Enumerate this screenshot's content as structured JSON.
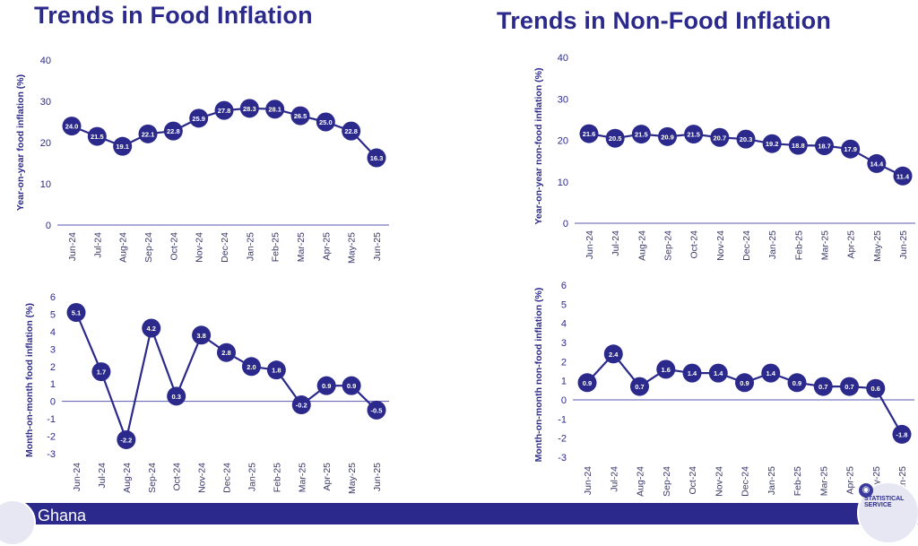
{
  "titles": {
    "left": "Trends in Food Inflation",
    "right": "Trends in Non-Food Inflation"
  },
  "footer": {
    "text": "Ghana",
    "seal_text": "STATISTICAL SERVICE"
  },
  "colors": {
    "line": "#2b2a8c",
    "axis_text": "#2b2a8c",
    "zero_line": "#5a59b0",
    "background": "#ffffff",
    "footer": "#2b2a8c"
  },
  "chart_data": [
    {
      "type": "line",
      "title": "Trends in Food Inflation",
      "xlabel": "",
      "ylabel": "Year-on-year food inflation (%)",
      "categories": [
        "Jun-24",
        "Jul-24",
        "Aug-24",
        "Sep-24",
        "Oct-24",
        "Nov-24",
        "Dec-24",
        "Jan-25",
        "Feb-25",
        "Mar-25",
        "Apr-25",
        "May-25",
        "Jun-25"
      ],
      "values": [
        24.0,
        21.5,
        19.1,
        22.1,
        22.8,
        25.9,
        27.8,
        28.3,
        28.1,
        26.5,
        25.0,
        22.8,
        16.3
      ],
      "labels": [
        "24.0",
        "21.5",
        "19.1",
        "22.1",
        "22.8",
        "25.9",
        "27.8",
        "28.3",
        "28.1",
        "26.5",
        "25.0",
        "22.8",
        "16.3"
      ],
      "yticks": [
        0,
        10,
        20,
        30,
        40
      ],
      "ylim": [
        0,
        40
      ],
      "grid": false
    },
    {
      "type": "line",
      "title": "Trends in Non-Food Inflation",
      "xlabel": "",
      "ylabel": "Year-on-year non-food inflation (%)",
      "categories": [
        "Jun-24",
        "Jul-24",
        "Aug-24",
        "Sep-24",
        "Oct-24",
        "Nov-24",
        "Dec-24",
        "Jan-25",
        "Feb-25",
        "Mar-25",
        "Apr-25",
        "May-25",
        "Jun-25"
      ],
      "values": [
        21.6,
        20.5,
        21.5,
        20.9,
        21.5,
        20.7,
        20.3,
        19.2,
        18.8,
        18.7,
        17.9,
        14.4,
        11.4
      ],
      "labels": [
        "21.6",
        "20.5",
        "21.5",
        "20.9",
        "21.5",
        "20.7",
        "20.3",
        "19.2",
        "18.8",
        "18.7",
        "17.9",
        "14.4",
        "11.4"
      ],
      "yticks": [
        0,
        10,
        20,
        30,
        40
      ],
      "ylim": [
        0,
        40
      ],
      "grid": false
    },
    {
      "type": "line",
      "title": "",
      "xlabel": "",
      "ylabel": "Month-on-month food inflation (%)",
      "categories": [
        "Jun-24",
        "Jul-24",
        "Aug-24",
        "Sep-24",
        "Oct-24",
        "Nov-24",
        "Dec-24",
        "Jan-25",
        "Feb-25",
        "Mar-25",
        "Apr-25",
        "May-25",
        "Jun-25"
      ],
      "values": [
        5.1,
        1.7,
        -2.2,
        4.2,
        0.3,
        3.8,
        2.8,
        2.0,
        1.8,
        -0.2,
        0.9,
        0.9,
        -0.5
      ],
      "labels": [
        "5.1",
        "1.7",
        "-2.2",
        "4.2",
        "0.3",
        "3.8",
        "2.8",
        "2.0",
        "1.8",
        "-0.2",
        "0.9",
        "0.9",
        "-0.5"
      ],
      "yticks": [
        -3,
        -2,
        -1,
        0,
        1,
        2,
        3,
        4,
        5,
        6
      ],
      "ylim": [
        -3,
        6
      ],
      "grid": false
    },
    {
      "type": "line",
      "title": "",
      "xlabel": "",
      "ylabel": "Month-on-month non-food inflation (%)",
      "categories": [
        "Jun-24",
        "Jul-24",
        "Aug-24",
        "Sep-24",
        "Oct-24",
        "Nov-24",
        "Dec-24",
        "Jan-25",
        "Feb-25",
        "Mar-25",
        "Apr-25",
        "May-25",
        "Jun-25"
      ],
      "values": [
        0.9,
        2.4,
        0.7,
        1.6,
        1.4,
        1.4,
        0.9,
        1.4,
        0.9,
        0.7,
        0.7,
        0.6,
        -1.8
      ],
      "labels": [
        "0.9",
        "2.4",
        "0.7",
        "1.6",
        "1.4",
        "1.4",
        "0.9",
        "1.4",
        "0.9",
        "0.7",
        "0.7",
        "0.6",
        "-1.8"
      ],
      "yticks": [
        -3,
        -2,
        -1,
        0,
        1,
        2,
        3,
        4,
        5,
        6
      ],
      "ylim": [
        -3,
        6
      ],
      "grid": false
    }
  ]
}
